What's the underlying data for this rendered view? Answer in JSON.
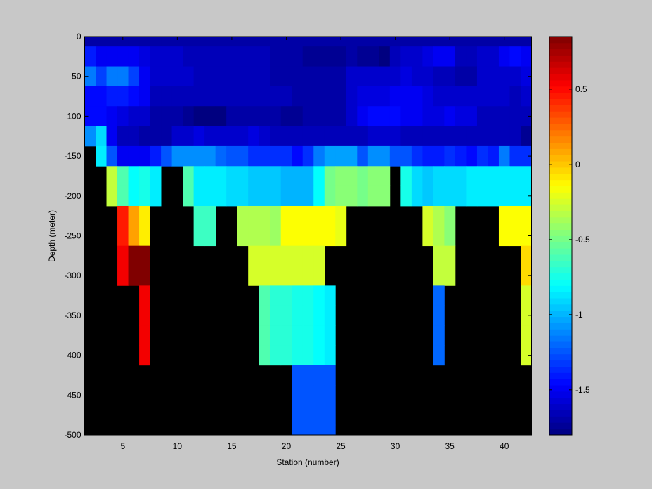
{
  "chart_data": {
    "type": "heatmap",
    "title": "",
    "xlabel": "Station (number)",
    "ylabel": "Depth (meter)",
    "xlim": [
      1.5,
      42.5
    ],
    "ylim": [
      -500,
      0
    ],
    "xticks": [
      5,
      10,
      15,
      20,
      25,
      30,
      35,
      40
    ],
    "yticks": [
      0,
      -50,
      -100,
      -150,
      -200,
      -250,
      -300,
      -350,
      -400,
      -450,
      -500
    ],
    "colormap": "jet",
    "clim": [
      -1.8,
      0.85
    ],
    "colorbar_ticks": [
      0.5,
      0,
      -0.5,
      -1,
      -1.5
    ],
    "nan_color": "#000000",
    "background_color": "#c8c8c8",
    "stations": [
      2,
      3,
      4,
      5,
      6,
      7,
      8,
      9,
      10,
      11,
      12,
      13,
      14,
      15,
      16,
      17,
      18,
      19,
      20,
      21,
      22,
      23,
      24,
      25,
      26,
      27,
      28,
      29,
      30,
      31,
      32,
      33,
      34,
      35,
      36,
      37,
      38,
      39,
      40,
      41,
      42
    ],
    "depths": [
      0,
      -25,
      -50,
      -75,
      -100,
      -125,
      -150,
      -175,
      -200,
      -225,
      -250,
      -275,
      -300,
      -325,
      -350,
      -375,
      -400,
      -425,
      -450,
      -475,
      -500
    ],
    "rows": [
      [
        -1.7,
        -1.7,
        -1.7,
        -1.7,
        -1.7,
        -1.7,
        -1.7,
        -1.7,
        -1.7,
        -1.7,
        -1.7,
        -1.7,
        -1.7,
        -1.7,
        -1.7,
        -1.7,
        -1.7,
        -1.7,
        -1.7,
        -1.7,
        -1.7,
        -1.7,
        -1.7,
        -1.7,
        -1.7,
        -1.7,
        -1.7,
        -1.7,
        -1.7,
        -1.7,
        -1.7,
        -1.7,
        -1.7,
        -1.7,
        -1.7,
        -1.7,
        -1.7,
        -1.7,
        -1.7,
        -1.7,
        -1.7
      ],
      [
        -1.4,
        -1.5,
        -1.5,
        -1.5,
        -1.5,
        -1.55,
        -1.6,
        -1.6,
        -1.6,
        -1.65,
        -1.65,
        -1.65,
        -1.65,
        -1.65,
        -1.65,
        -1.65,
        -1.65,
        -1.7,
        -1.7,
        -1.7,
        -1.75,
        -1.75,
        -1.75,
        -1.75,
        -1.7,
        -1.75,
        -1.75,
        -1.8,
        -1.65,
        -1.6,
        -1.6,
        -1.55,
        -1.5,
        -1.5,
        -1.65,
        -1.65,
        -1.6,
        -1.6,
        -1.5,
        -1.45,
        -1.5
      ],
      [
        -1.15,
        -1.3,
        -1.15,
        -1.15,
        -1.3,
        -1.5,
        -1.6,
        -1.6,
        -1.6,
        -1.6,
        -1.65,
        -1.65,
        -1.65,
        -1.65,
        -1.65,
        -1.65,
        -1.65,
        -1.7,
        -1.7,
        -1.7,
        -1.7,
        -1.7,
        -1.7,
        -1.7,
        -1.6,
        -1.6,
        -1.6,
        -1.6,
        -1.6,
        -1.55,
        -1.6,
        -1.6,
        -1.65,
        -1.65,
        -1.7,
        -1.7,
        -1.6,
        -1.6,
        -1.6,
        -1.6,
        -1.55
      ],
      [
        -1.45,
        -1.45,
        -1.4,
        -1.4,
        -1.45,
        -1.5,
        -1.65,
        -1.65,
        -1.65,
        -1.65,
        -1.65,
        -1.65,
        -1.65,
        -1.65,
        -1.65,
        -1.65,
        -1.65,
        -1.65,
        -1.65,
        -1.7,
        -1.7,
        -1.7,
        -1.7,
        -1.7,
        -1.6,
        -1.55,
        -1.55,
        -1.55,
        -1.5,
        -1.5,
        -1.5,
        -1.55,
        -1.6,
        -1.6,
        -1.6,
        -1.6,
        -1.6,
        -1.6,
        -1.6,
        -1.65,
        -1.6
      ],
      [
        -1.45,
        -1.45,
        -1.5,
        -1.55,
        -1.6,
        -1.6,
        -1.7,
        -1.7,
        -1.7,
        -1.75,
        -1.8,
        -1.8,
        -1.8,
        -1.7,
        -1.7,
        -1.7,
        -1.7,
        -1.7,
        -1.75,
        -1.75,
        -1.7,
        -1.7,
        -1.7,
        -1.7,
        -1.6,
        -1.5,
        -1.45,
        -1.45,
        -1.45,
        -1.5,
        -1.5,
        -1.55,
        -1.55,
        -1.5,
        -1.55,
        -1.55,
        -1.65,
        -1.65,
        -1.65,
        -1.65,
        -1.65
      ],
      [
        -1.1,
        -0.9,
        -1.5,
        -1.65,
        -1.65,
        -1.7,
        -1.7,
        -1.7,
        -1.6,
        -1.6,
        -1.55,
        -1.6,
        -1.6,
        -1.6,
        -1.6,
        -1.55,
        -1.6,
        -1.65,
        -1.65,
        -1.65,
        -1.65,
        -1.65,
        -1.65,
        -1.65,
        -1.65,
        -1.65,
        -1.6,
        -1.6,
        -1.6,
        -1.65,
        -1.65,
        -1.65,
        -1.65,
        -1.65,
        -1.65,
        -1.65,
        -1.65,
        -1.65,
        -1.65,
        -1.65,
        -1.75
      ],
      [
        null,
        -0.85,
        -1.25,
        -1.5,
        -1.5,
        -1.5,
        -1.4,
        -1.25,
        -1.1,
        -1.1,
        -1.1,
        -1.1,
        -1.2,
        -1.25,
        -1.25,
        -1.35,
        -1.35,
        -1.35,
        -1.35,
        -1.45,
        -1.35,
        -1.15,
        -1.05,
        -1.05,
        -1.05,
        -1.25,
        -1.1,
        -1.1,
        -1.25,
        -1.25,
        -1.35,
        -1.4,
        -1.4,
        -1.35,
        -1.4,
        -1.45,
        -1.35,
        -1.4,
        -1.15,
        -1.35,
        -1.35
      ],
      [
        null,
        null,
        -0.3,
        -0.6,
        -0.8,
        -0.75,
        -0.85,
        null,
        null,
        -0.6,
        -0.85,
        -0.85,
        -0.85,
        -0.9,
        -0.9,
        -0.95,
        -0.95,
        -0.95,
        -1.0,
        -1.0,
        -1.0,
        -0.8,
        -0.5,
        -0.45,
        -0.45,
        -0.5,
        -0.45,
        -0.45,
        null,
        -0.75,
        -0.9,
        -0.95,
        -0.9,
        -0.9,
        -0.9,
        -0.85,
        -0.85,
        -0.85,
        -0.85,
        -0.85,
        -0.85
      ],
      [
        null,
        null,
        -0.3,
        -0.6,
        -0.8,
        -0.75,
        -0.85,
        null,
        null,
        -0.6,
        -0.85,
        -0.85,
        -0.85,
        -0.9,
        -0.9,
        -0.95,
        -0.95,
        -0.95,
        -1.0,
        -1.0,
        -1.0,
        -0.8,
        -0.5,
        -0.45,
        -0.45,
        -0.5,
        -0.45,
        -0.45,
        null,
        -0.75,
        -0.9,
        -0.95,
        -0.9,
        -0.9,
        -0.9,
        -0.85,
        -0.85,
        -0.85,
        -0.85,
        -0.85,
        -0.85
      ],
      [
        null,
        null,
        null,
        0.45,
        0.1,
        -0.1,
        null,
        null,
        null,
        null,
        -0.65,
        -0.65,
        null,
        null,
        -0.35,
        -0.35,
        -0.35,
        -0.4,
        -0.15,
        -0.15,
        -0.15,
        -0.15,
        -0.15,
        -0.2,
        null,
        null,
        null,
        null,
        null,
        null,
        null,
        -0.25,
        -0.35,
        -0.45,
        null,
        null,
        null,
        null,
        -0.15,
        -0.15,
        -0.15
      ],
      [
        null,
        null,
        null,
        0.45,
        0.1,
        -0.1,
        null,
        null,
        null,
        null,
        -0.65,
        -0.65,
        null,
        null,
        -0.35,
        -0.35,
        -0.35,
        -0.4,
        -0.15,
        -0.15,
        -0.15,
        -0.15,
        -0.15,
        -0.2,
        null,
        null,
        null,
        null,
        null,
        null,
        null,
        -0.25,
        -0.35,
        -0.45,
        null,
        null,
        null,
        null,
        -0.15,
        -0.15,
        -0.15
      ],
      [
        null,
        null,
        null,
        0.55,
        0.85,
        0.85,
        null,
        null,
        null,
        null,
        null,
        null,
        null,
        null,
        null,
        -0.25,
        -0.25,
        -0.25,
        -0.25,
        -0.25,
        -0.25,
        -0.25,
        null,
        null,
        null,
        null,
        null,
        null,
        null,
        null,
        null,
        null,
        -0.3,
        -0.3,
        null,
        null,
        null,
        null,
        null,
        null,
        -0.05
      ],
      [
        null,
        null,
        null,
        0.55,
        0.85,
        0.85,
        null,
        null,
        null,
        null,
        null,
        null,
        null,
        null,
        null,
        -0.25,
        -0.25,
        -0.25,
        -0.25,
        -0.25,
        -0.25,
        -0.25,
        null,
        null,
        null,
        null,
        null,
        null,
        null,
        null,
        null,
        null,
        -0.3,
        -0.3,
        null,
        null,
        null,
        null,
        null,
        null,
        -0.05
      ],
      [
        null,
        null,
        null,
        null,
        null,
        0.55,
        null,
        null,
        null,
        null,
        null,
        null,
        null,
        null,
        null,
        null,
        -0.6,
        -0.7,
        -0.7,
        -0.75,
        -0.75,
        -0.8,
        -0.85,
        null,
        null,
        null,
        null,
        null,
        null,
        null,
        null,
        null,
        -1.2,
        null,
        null,
        null,
        null,
        null,
        null,
        null,
        -0.25
      ],
      [
        null,
        null,
        null,
        null,
        null,
        0.55,
        null,
        null,
        null,
        null,
        null,
        null,
        null,
        null,
        null,
        null,
        -0.6,
        -0.7,
        -0.7,
        -0.75,
        -0.75,
        -0.8,
        -0.85,
        null,
        null,
        null,
        null,
        null,
        null,
        null,
        null,
        null,
        -1.2,
        null,
        null,
        null,
        null,
        null,
        null,
        null,
        -0.25
      ],
      [
        null,
        null,
        null,
        null,
        null,
        0.55,
        null,
        null,
        null,
        null,
        null,
        null,
        null,
        null,
        null,
        null,
        -0.6,
        -0.7,
        -0.7,
        -0.75,
        -0.75,
        -0.8,
        -0.85,
        null,
        null,
        null,
        null,
        null,
        null,
        null,
        null,
        null,
        -1.2,
        null,
        null,
        null,
        null,
        null,
        null,
        null,
        -0.25
      ],
      [
        null,
        null,
        null,
        null,
        null,
        0.55,
        null,
        null,
        null,
        null,
        null,
        null,
        null,
        null,
        null,
        null,
        -0.6,
        -0.7,
        -0.7,
        -0.75,
        -0.75,
        -0.8,
        -0.85,
        null,
        null,
        null,
        null,
        null,
        null,
        null,
        null,
        null,
        -1.2,
        null,
        null,
        null,
        null,
        null,
        null,
        null,
        -0.25
      ],
      [
        null,
        null,
        null,
        null,
        null,
        null,
        null,
        null,
        null,
        null,
        null,
        null,
        null,
        null,
        null,
        null,
        null,
        null,
        null,
        -1.25,
        -1.25,
        -1.25,
        -1.25,
        null,
        null,
        null,
        null,
        null,
        null,
        null,
        null,
        null,
        null,
        null,
        null,
        null,
        null,
        null,
        null,
        null,
        null
      ],
      [
        null,
        null,
        null,
        null,
        null,
        null,
        null,
        null,
        null,
        null,
        null,
        null,
        null,
        null,
        null,
        null,
        null,
        null,
        null,
        -1.25,
        -1.25,
        -1.25,
        -1.25,
        null,
        null,
        null,
        null,
        null,
        null,
        null,
        null,
        null,
        null,
        null,
        null,
        null,
        null,
        null,
        null,
        null,
        null
      ],
      [
        null,
        null,
        null,
        null,
        null,
        null,
        null,
        null,
        null,
        null,
        null,
        null,
        null,
        null,
        null,
        null,
        null,
        null,
        null,
        -1.25,
        -1.25,
        -1.25,
        -1.25,
        null,
        null,
        null,
        null,
        null,
        null,
        null,
        null,
        null,
        null,
        null,
        null,
        null,
        null,
        null,
        null,
        null,
        null
      ],
      [
        null,
        null,
        null,
        null,
        null,
        null,
        null,
        null,
        null,
        null,
        null,
        null,
        null,
        null,
        null,
        null,
        null,
        null,
        null,
        -1.25,
        -1.25,
        -1.25,
        -1.25,
        null,
        null,
        null,
        null,
        null,
        null,
        null,
        null,
        null,
        null,
        null,
        null,
        null,
        null,
        null,
        null,
        null,
        null
      ]
    ]
  }
}
